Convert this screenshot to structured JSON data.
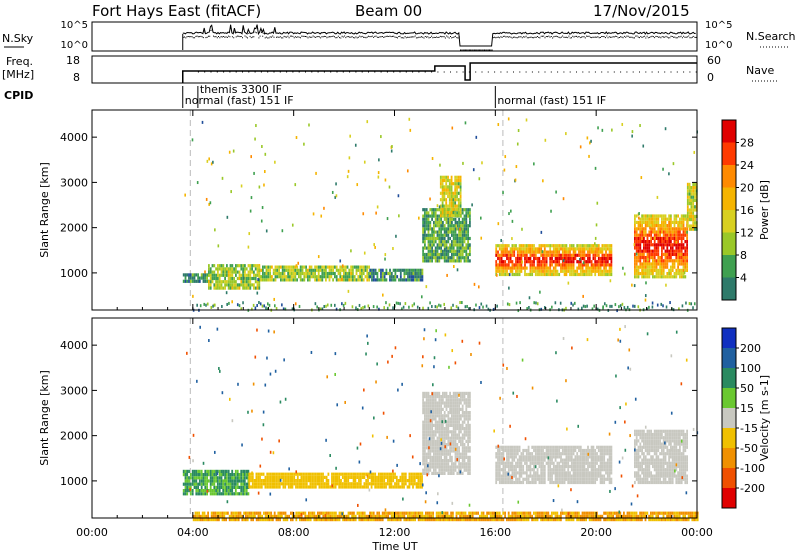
{
  "header": {
    "station": "Fort Hays East (fitACF)",
    "beam": "Beam 00",
    "date": "17/Nov/2015"
  },
  "noise_panel": {
    "left_label": "N.Sky",
    "right_label": "N.Search",
    "left_ticks": [
      "10^5",
      "10^0"
    ],
    "right_ticks": [
      "10^5",
      "10^0"
    ]
  },
  "freq_panel": {
    "left_label_1": "Freq.",
    "left_label_2": "[MHz]",
    "right_label": "Nave",
    "left_ticks": [
      "18",
      "8"
    ],
    "right_ticks": [
      "60",
      "0"
    ]
  },
  "cpid": {
    "label": "CPID",
    "segments": [
      {
        "start_hr": 3.6,
        "text": "normal (fast) 151 IF"
      },
      {
        "start_hr": 4.2,
        "text": "themis 3300 IF"
      },
      {
        "start_hr": 16.0,
        "text": "normal (fast) 151 IF"
      }
    ]
  },
  "power_panel": {
    "ylabel": "Slant Range [km]",
    "cbar_label": "Power [dB]",
    "cbar_ticks": [
      "28",
      "24",
      "20",
      "16",
      "12",
      "8",
      "4"
    ],
    "cbar_colors": [
      "#e00000",
      "#ff3a00",
      "#ff8a00",
      "#f5b400",
      "#d8d020",
      "#9ac828",
      "#3fa050",
      "#2e7a6a",
      "#204e9a",
      "#1028c8"
    ]
  },
  "velocity_panel": {
    "ylabel": "Slant Range [km]",
    "cbar_label": "Velocity [m s-1]",
    "cbar_ticks": [
      "200",
      "100",
      "50",
      "15",
      "-15",
      "-50",
      "-100",
      "-200"
    ],
    "cbar_colors": [
      "#1030c0",
      "#2060a0",
      "#2a8a60",
      "#6ac830",
      "#c8c8c0",
      "#f0c000",
      "#f09000",
      "#f05000",
      "#e00000"
    ]
  },
  "axes": {
    "xlabel": "Time UT",
    "xticks": [
      "00:00",
      "04:00",
      "08:00",
      "12:00",
      "16:00",
      "20:00",
      "00:00"
    ],
    "yticks": [
      "1000",
      "2000",
      "3000",
      "4000"
    ]
  },
  "chart_data": {
    "type": "heatmap",
    "title": "Fort Hays East (fitACF) Beam 00 17/Nov/2015",
    "xlabel": "Time UT",
    "ylabel": "Slant Range [km]",
    "xlim_hours": [
      0,
      24
    ],
    "ylim_km": [
      180,
      4600
    ],
    "power_features": [
      {
        "t0": 3.6,
        "t1": 4.6,
        "r0": 850,
        "r1": 1050,
        "level": 8
      },
      {
        "t0": 4.6,
        "t1": 6.6,
        "r0": 700,
        "r1": 1200,
        "level": 14
      },
      {
        "t0": 6.6,
        "t1": 11.0,
        "r0": 880,
        "r1": 1200,
        "level": 14
      },
      {
        "t0": 11.0,
        "t1": 13.1,
        "r0": 880,
        "r1": 1150,
        "level": 8
      },
      {
        "t0": 13.1,
        "t1": 15.0,
        "r0": 1300,
        "r1": 2500,
        "level": 10
      },
      {
        "t0": 13.8,
        "t1": 14.6,
        "r0": 2300,
        "r1": 3200,
        "level": 16
      },
      {
        "t0": 16.0,
        "t1": 20.6,
        "r0": 1000,
        "r1": 1650,
        "level": 24
      },
      {
        "t0": 21.5,
        "t1": 23.6,
        "r0": 950,
        "r1": 2300,
        "level": 24
      },
      {
        "t0": 23.6,
        "t1": 24.0,
        "r0": 2000,
        "r1": 3000,
        "level": 16
      }
    ],
    "velocity_features": [
      {
        "t0": 3.6,
        "t1": 6.2,
        "r0": 750,
        "r1": 1300,
        "velocity": 30
      },
      {
        "t0": 6.2,
        "t1": 13.1,
        "r0": 900,
        "r1": 1200,
        "velocity": -30
      },
      {
        "t0": 13.1,
        "t1": 15.0,
        "r0": 1200,
        "r1": 3000,
        "velocity": 0
      },
      {
        "t0": 16.0,
        "t1": 20.6,
        "r0": 1000,
        "r1": 1800,
        "velocity": 0
      },
      {
        "t0": 21.5,
        "t1": 23.6,
        "r0": 1000,
        "r1": 2200,
        "velocity": 0
      },
      {
        "t0": 4.0,
        "t1": 24.0,
        "r0": 180,
        "r1": 350,
        "velocity": -40
      }
    ]
  }
}
